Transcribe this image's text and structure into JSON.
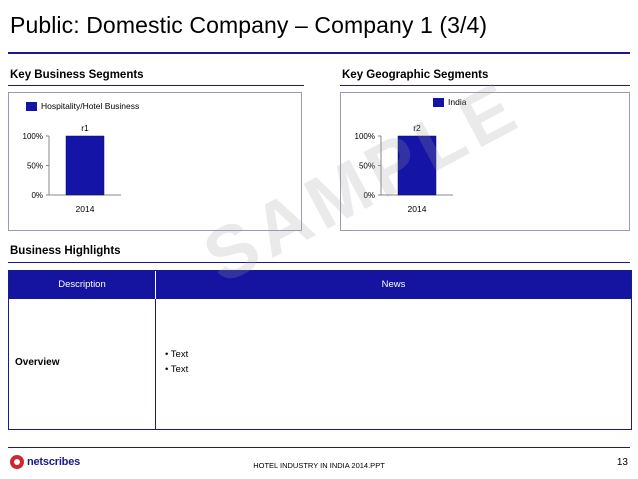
{
  "page": {
    "title": "Public: Domestic Company – Company 1 (3/4)",
    "watermark": "SAMPLE"
  },
  "sections": {
    "business_segments": "Key Business Segments",
    "geographic_segments": "Key Geographic Segments",
    "highlights": "Business Highlights"
  },
  "chart_data": [
    {
      "type": "bar",
      "title": "",
      "categories": [
        "2014"
      ],
      "series": [
        {
          "name": "Hospitality/Hotel Business",
          "values": [
            100
          ]
        }
      ],
      "data_labels": [
        "r1"
      ],
      "yticks": [
        "0%",
        "50%",
        "100%"
      ],
      "ylim": [
        0,
        100
      ],
      "legend": "top-left",
      "grid": false,
      "color": "#1414a6"
    },
    {
      "type": "bar",
      "title": "",
      "categories": [
        "2014"
      ],
      "series": [
        {
          "name": "India",
          "values": [
            100
          ]
        }
      ],
      "data_labels": [
        "r2"
      ],
      "yticks": [
        "0%",
        "50%",
        "100%"
      ],
      "ylim": [
        0,
        100
      ],
      "legend": "top-right",
      "grid": false,
      "color": "#1414a6"
    }
  ],
  "table": {
    "headers": [
      "Description",
      "News"
    ],
    "rows": [
      {
        "label": "Overview",
        "bullets": [
          "• Text",
          "• Text"
        ]
      }
    ]
  },
  "footer": {
    "logo_text": "netscribes",
    "document_name": "HOTEL INDUSTRY IN INDIA 2014.PPT",
    "page_number": "13"
  },
  "colors": {
    "accent": "#1414a0",
    "bar": "#1414a6",
    "logo_red": "#d0262f"
  }
}
